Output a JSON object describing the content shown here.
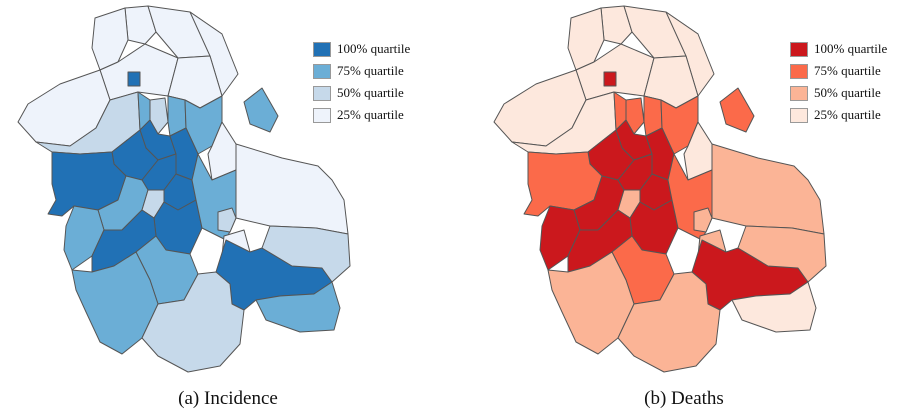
{
  "legend_items": [
    {
      "label": "100% quartile",
      "level": 4
    },
    {
      "label": "75% quartile",
      "level": 3
    },
    {
      "label": "50% quartile",
      "level": 2
    },
    {
      "label": "25% quartile",
      "level": 1
    }
  ],
  "panels": [
    {
      "id": "a",
      "caption": "(a) Incidence",
      "palette": {
        "1": "#eef3fb",
        "2": "#c6d9ea",
        "3": "#6baed6",
        "4": "#2171b5"
      }
    },
    {
      "id": "b",
      "caption": "(b) Deaths",
      "palette": {
        "1": "#fde8dd",
        "2": "#fbb496",
        "3": "#fb6a4a",
        "4": "#cb181d"
      }
    }
  ]
}
